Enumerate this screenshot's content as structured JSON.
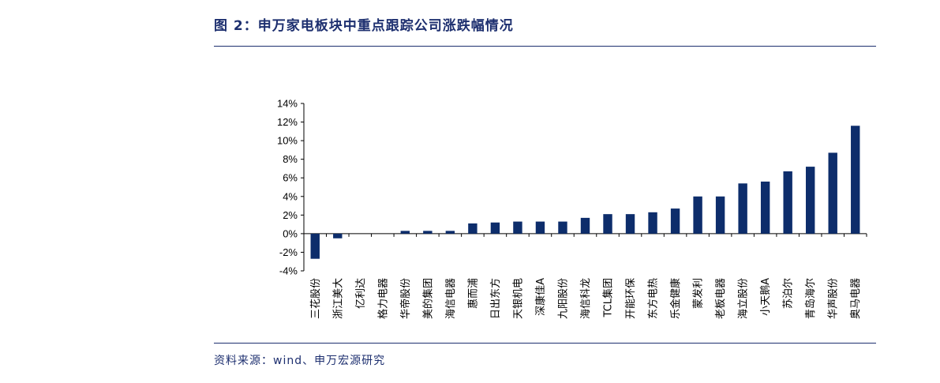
{
  "header": {
    "title": "图 2：申万家电板块中重点跟踪公司涨跌幅情况"
  },
  "footer": {
    "source": "资料来源：wind、申万宏源研究"
  },
  "colors": {
    "bar": "#0d2d6b",
    "text": "#1d2f6f",
    "axis": "#000000"
  },
  "chart_data": {
    "type": "bar",
    "title": "",
    "xlabel": "",
    "ylabel": "",
    "ylim": [
      -4,
      14
    ],
    "ytick_step": 2,
    "ytick_labels": [
      "-4%",
      "-2%",
      "0%",
      "2%",
      "4%",
      "6%",
      "8%",
      "10%",
      "12%",
      "14%"
    ],
    "grid": false,
    "legend": "none",
    "categories": [
      "三花股份",
      "浙江美大",
      "亿利达",
      "格力电器",
      "华帝股份",
      "美的集团",
      "海信电器",
      "惠而浦",
      "日出东方",
      "天银机电",
      "深康佳A",
      "九阳股份",
      "海信科龙",
      "TCL集团",
      "开能环保",
      "东方电热",
      "乐金健康",
      "蒙发利",
      "老板电器",
      "海立股份",
      "小天鹅A",
      "苏泊尔",
      "青岛海尔",
      "华声股份",
      "奥马电器"
    ],
    "values": [
      -2.7,
      -0.5,
      0.0,
      0.0,
      0.3,
      0.3,
      0.3,
      1.1,
      1.2,
      1.3,
      1.3,
      1.3,
      1.7,
      2.1,
      2.1,
      2.3,
      2.7,
      4.0,
      4.0,
      5.4,
      5.6,
      6.7,
      7.2,
      8.7,
      11.6
    ]
  }
}
